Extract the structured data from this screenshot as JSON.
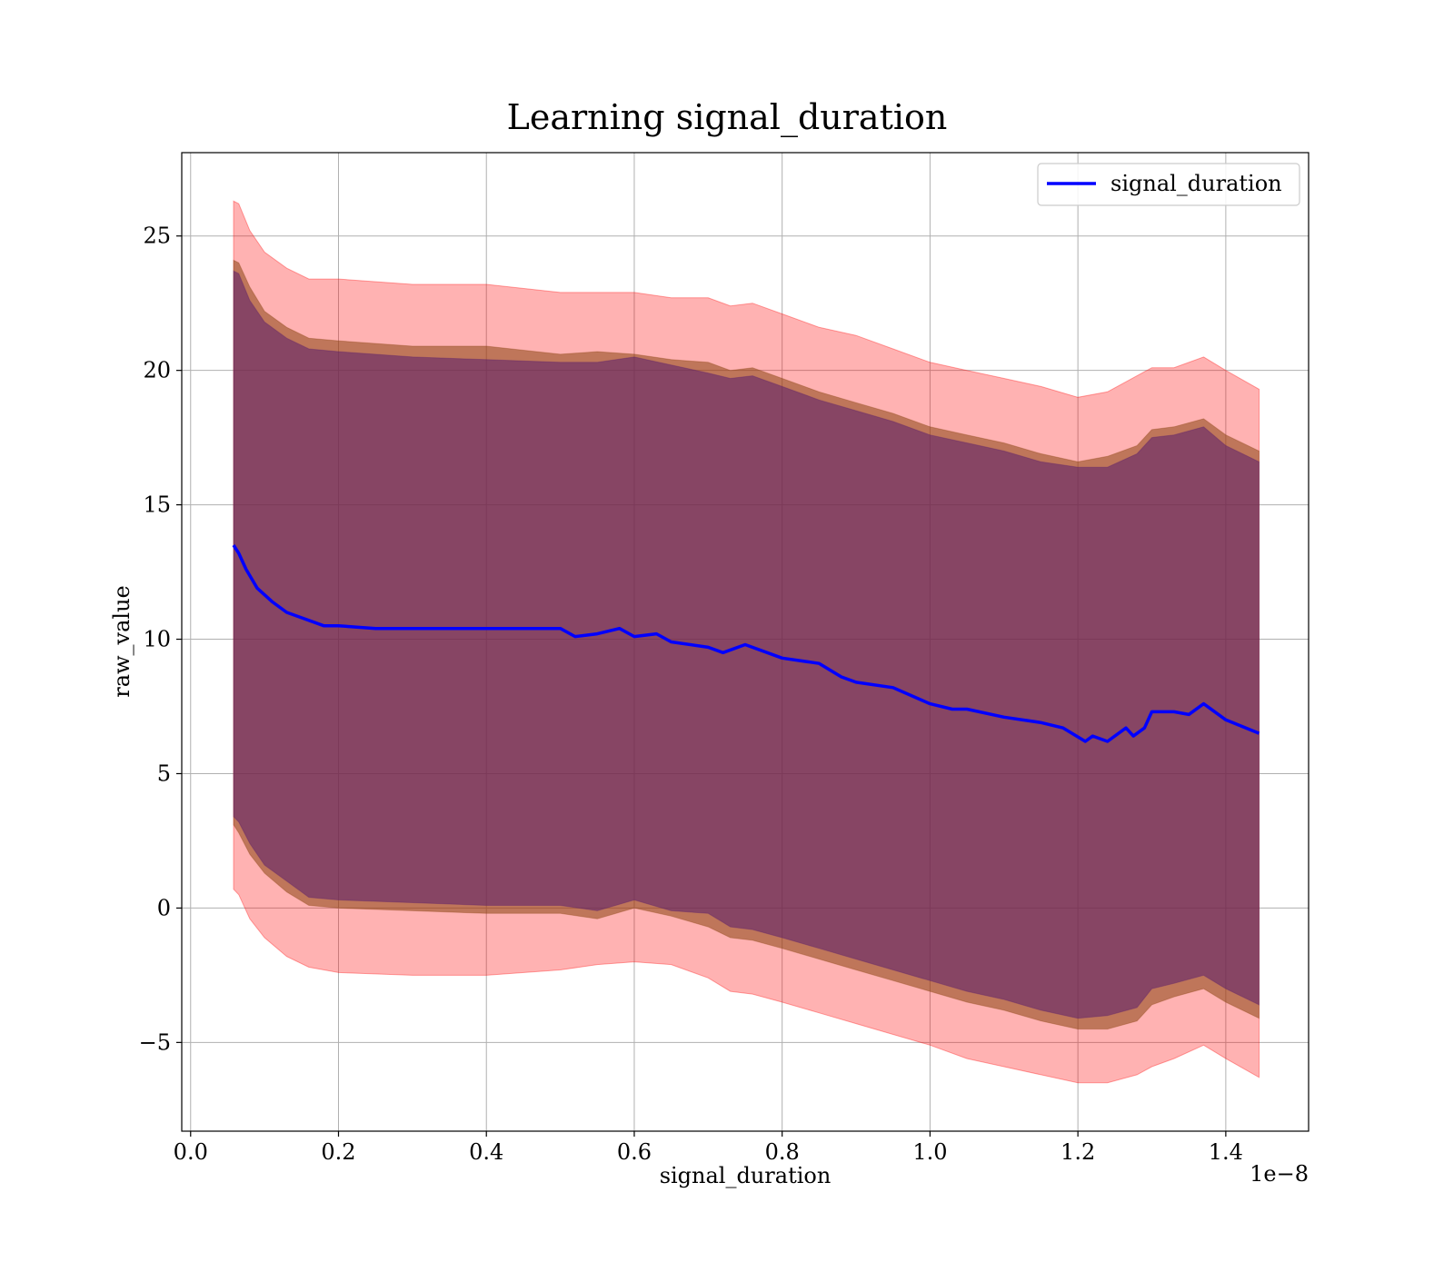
{
  "chart_data": {
    "type": "area",
    "title": "Learning signal_duration",
    "xlabel": "signal_duration",
    "ylabel": "raw_value",
    "x_offset_label": "1e−8",
    "x_scale": 1e-08,
    "xlim": [
      -0.012,
      1.512
    ],
    "ylim": [
      -8.3,
      28.1
    ],
    "x_ticks": [
      0.0,
      0.2,
      0.4,
      0.6,
      0.8,
      1.0,
      1.2,
      1.4
    ],
    "x_tick_labels": [
      "0.0",
      "0.2",
      "0.4",
      "0.6",
      "0.8",
      "1.0",
      "1.2",
      "1.4"
    ],
    "y_ticks": [
      -5,
      0,
      5,
      10,
      15,
      20,
      25
    ],
    "y_tick_labels": [
      "−5",
      "0",
      "5",
      "10",
      "15",
      "20",
      "25"
    ],
    "grid": true,
    "legend_position": "upper right",
    "series": [
      {
        "name": "signal_duration",
        "role": "line",
        "color": "#0000ff",
        "x": [
          0.058,
          0.065,
          0.075,
          0.09,
          0.11,
          0.13,
          0.15,
          0.18,
          0.2,
          0.25,
          0.3,
          0.35,
          0.4,
          0.45,
          0.5,
          0.52,
          0.55,
          0.58,
          0.6,
          0.63,
          0.65,
          0.7,
          0.72,
          0.75,
          0.8,
          0.85,
          0.88,
          0.9,
          0.95,
          1.0,
          1.03,
          1.05,
          1.1,
          1.15,
          1.18,
          1.21,
          1.22,
          1.24,
          1.265,
          1.275,
          1.29,
          1.3,
          1.33,
          1.35,
          1.37,
          1.4,
          1.445
        ],
        "y": [
          13.5,
          13.2,
          12.6,
          11.9,
          11.4,
          11.0,
          10.8,
          10.5,
          10.5,
          10.4,
          10.4,
          10.4,
          10.4,
          10.4,
          10.4,
          10.1,
          10.2,
          10.4,
          10.1,
          10.2,
          9.9,
          9.7,
          9.5,
          9.8,
          9.3,
          9.1,
          8.6,
          8.4,
          8.2,
          7.6,
          7.4,
          7.4,
          7.1,
          6.9,
          6.7,
          6.2,
          6.4,
          6.2,
          6.7,
          6.4,
          6.7,
          7.3,
          7.3,
          7.2,
          7.6,
          7.0,
          6.5
        ]
      },
      {
        "name": "",
        "role": "band-outer",
        "color": "#ff0000",
        "x": [
          0.058,
          0.065,
          0.08,
          0.1,
          0.13,
          0.16,
          0.2,
          0.3,
          0.4,
          0.5,
          0.55,
          0.6,
          0.65,
          0.7,
          0.73,
          0.76,
          0.8,
          0.85,
          0.9,
          0.95,
          1.0,
          1.05,
          1.1,
          1.15,
          1.2,
          1.24,
          1.28,
          1.3,
          1.33,
          1.37,
          1.4,
          1.445
        ],
        "upper": [
          26.3,
          26.2,
          25.2,
          24.4,
          23.8,
          23.4,
          23.4,
          23.2,
          23.2,
          22.9,
          22.9,
          22.9,
          22.7,
          22.7,
          22.4,
          22.5,
          22.1,
          21.6,
          21.3,
          20.8,
          20.3,
          20.0,
          19.7,
          19.4,
          19.0,
          19.2,
          19.8,
          20.1,
          20.1,
          20.5,
          20.0,
          19.3
        ],
        "lower": [
          0.7,
          0.5,
          -0.4,
          -1.1,
          -1.8,
          -2.2,
          -2.4,
          -2.5,
          -2.5,
          -2.3,
          -2.1,
          -2.0,
          -2.1,
          -2.6,
          -3.1,
          -3.2,
          -3.5,
          -3.9,
          -4.3,
          -4.7,
          -5.1,
          -5.6,
          -5.9,
          -6.2,
          -6.5,
          -6.5,
          -6.2,
          -5.9,
          -5.6,
          -5.1,
          -5.6,
          -6.3
        ]
      },
      {
        "name": "",
        "role": "band-middle",
        "color": "#8b4513",
        "x": [
          0.058,
          0.065,
          0.08,
          0.1,
          0.13,
          0.16,
          0.2,
          0.3,
          0.4,
          0.5,
          0.55,
          0.6,
          0.65,
          0.7,
          0.73,
          0.76,
          0.8,
          0.85,
          0.9,
          0.95,
          1.0,
          1.05,
          1.1,
          1.15,
          1.2,
          1.24,
          1.28,
          1.3,
          1.33,
          1.37,
          1.4,
          1.445
        ],
        "upper": [
          24.1,
          24.0,
          23.1,
          22.2,
          21.6,
          21.2,
          21.1,
          20.9,
          20.9,
          20.6,
          20.7,
          20.6,
          20.4,
          20.3,
          20.0,
          20.1,
          19.7,
          19.2,
          18.8,
          18.4,
          17.9,
          17.6,
          17.3,
          16.9,
          16.6,
          16.8,
          17.2,
          17.8,
          17.9,
          18.2,
          17.6,
          17.0
        ],
        "lower": [
          3.1,
          2.8,
          2.0,
          1.3,
          0.6,
          0.1,
          0.0,
          -0.1,
          -0.2,
          -0.2,
          -0.4,
          0.0,
          -0.3,
          -0.7,
          -1.1,
          -1.2,
          -1.5,
          -1.9,
          -2.3,
          -2.7,
          -3.1,
          -3.5,
          -3.8,
          -4.2,
          -4.5,
          -4.5,
          -4.2,
          -3.6,
          -3.3,
          -3.0,
          -3.5,
          -4.1
        ]
      },
      {
        "name": "",
        "role": "band-inner",
        "color": "#5a1e6e",
        "x": [
          0.058,
          0.065,
          0.08,
          0.1,
          0.13,
          0.16,
          0.2,
          0.3,
          0.4,
          0.5,
          0.55,
          0.6,
          0.65,
          0.7,
          0.73,
          0.76,
          0.8,
          0.85,
          0.9,
          0.95,
          1.0,
          1.05,
          1.1,
          1.15,
          1.2,
          1.24,
          1.28,
          1.3,
          1.33,
          1.37,
          1.4,
          1.445
        ],
        "upper": [
          23.7,
          23.6,
          22.6,
          21.8,
          21.2,
          20.8,
          20.7,
          20.5,
          20.4,
          20.3,
          20.3,
          20.5,
          20.2,
          19.9,
          19.7,
          19.8,
          19.4,
          18.9,
          18.5,
          18.1,
          17.6,
          17.3,
          17.0,
          16.6,
          16.4,
          16.4,
          16.9,
          17.5,
          17.6,
          17.9,
          17.2,
          16.6
        ],
        "lower": [
          3.4,
          3.2,
          2.4,
          1.6,
          1.0,
          0.4,
          0.3,
          0.2,
          0.1,
          0.1,
          -0.1,
          0.3,
          -0.1,
          -0.2,
          -0.7,
          -0.8,
          -1.1,
          -1.5,
          -1.9,
          -2.3,
          -2.7,
          -3.1,
          -3.4,
          -3.8,
          -4.1,
          -4.0,
          -3.7,
          -3.0,
          -2.8,
          -2.5,
          -3.0,
          -3.6
        ]
      }
    ]
  }
}
